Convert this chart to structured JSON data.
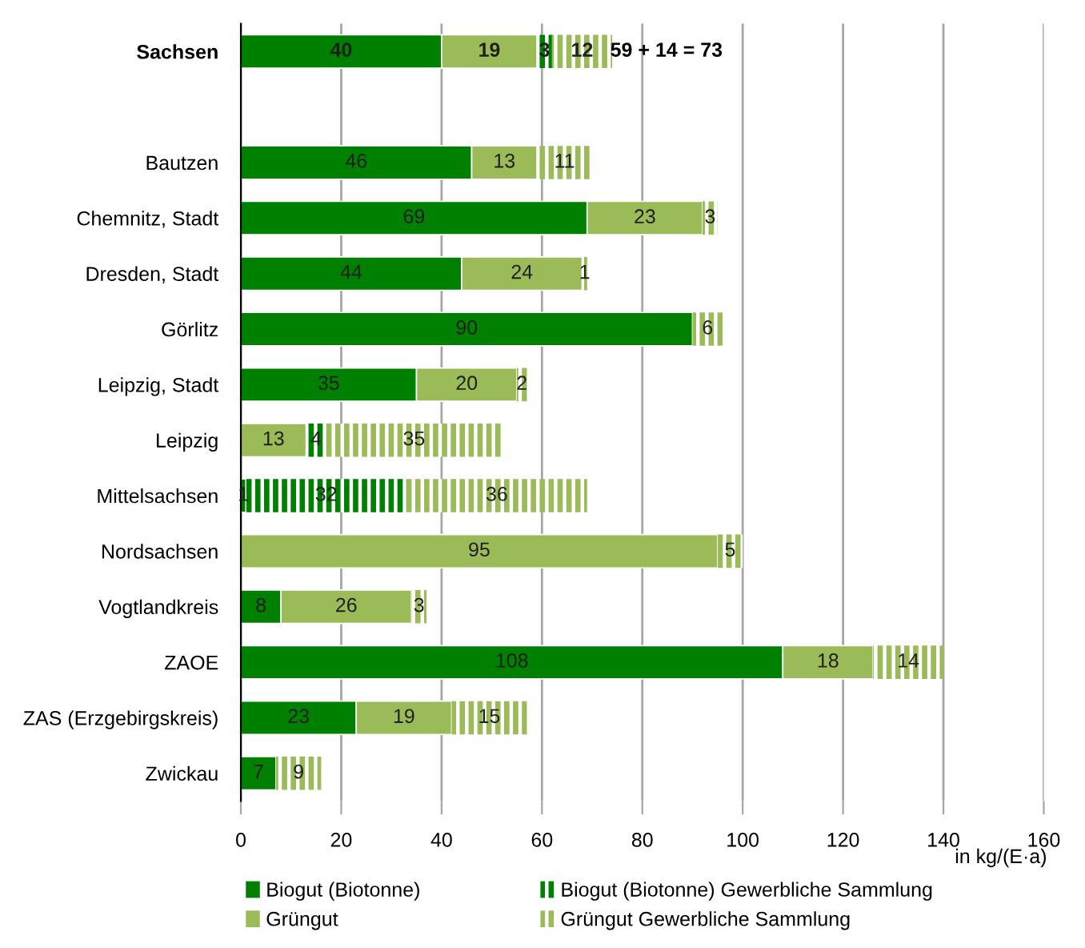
{
  "chart_data": {
    "type": "bar",
    "orientation": "horizontal",
    "stacked": true,
    "data_labels": true,
    "grid": "x",
    "legend": "bottom",
    "categories": [
      "Sachsen",
      null,
      "Bautzen",
      "Chemnitz, Stadt",
      "Dresden, Stadt",
      "Görlitz",
      "Leipzig, Stadt",
      "Leipzig",
      "Mittelsachsen",
      "Nordsachsen",
      "Vogtlandkreis",
      "ZAOE",
      "ZAS (Erzgebirgskreis)",
      "Zwickau"
    ],
    "series": [
      {
        "name": "Biogut (Biotonne)",
        "color": "#008000",
        "values": [
          40,
          null,
          46,
          69,
          44,
          90,
          35,
          null,
          1,
          null,
          8,
          108,
          23,
          7
        ]
      },
      {
        "name": "Grüngut",
        "color": "#9bbb59",
        "values": [
          19,
          null,
          13,
          23,
          24,
          null,
          20,
          13,
          null,
          95,
          26,
          18,
          19,
          null
        ]
      },
      {
        "name": "Biogut (Biotonne) Gewerbliche Sammlung",
        "color": "#008000",
        "values": [
          3,
          null,
          null,
          null,
          null,
          null,
          null,
          4,
          32,
          null,
          null,
          null,
          null,
          null
        ]
      },
      {
        "name": "Grüngut Gewerbliche Sammlung",
        "color": "#9bbb59",
        "values": [
          12,
          null,
          11,
          3,
          1,
          6,
          2,
          35,
          36,
          5,
          3,
          14,
          15,
          9
        ]
      }
    ],
    "xlim": [
      0,
      160
    ],
    "xticks": [
      0,
      20,
      40,
      60,
      80,
      100,
      120,
      140,
      160
    ],
    "annotations": [
      "59 + 14 = 73",
      "in kg/(E·a)"
    ]
  }
}
